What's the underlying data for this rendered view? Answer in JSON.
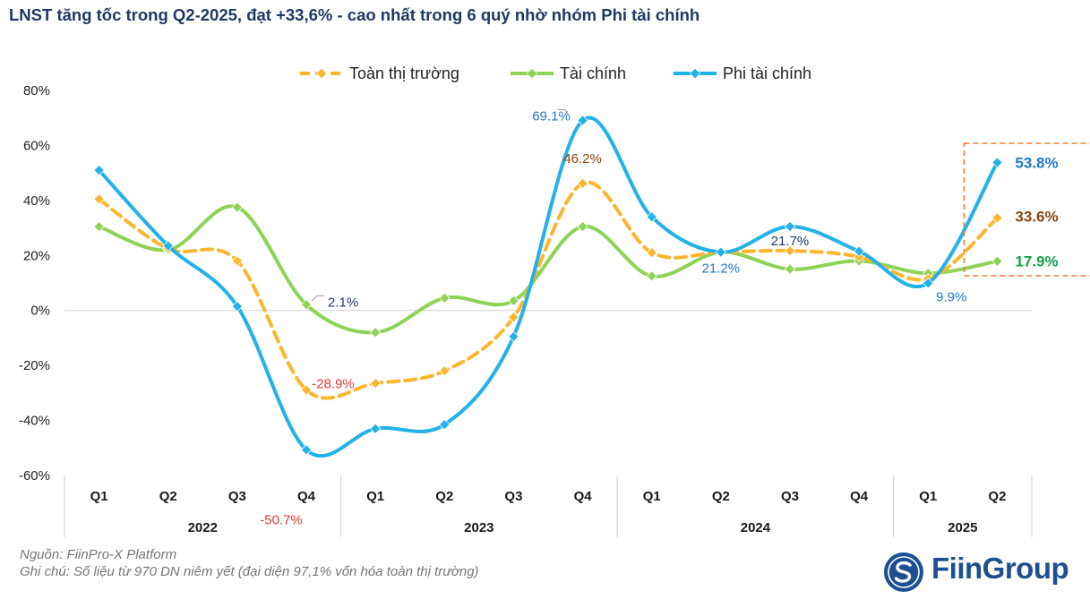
{
  "page": {
    "title": "LNST tăng tốc trong Q2-2025, đạt +33,6% - cao nhất trong 6 quý nhờ nhóm Phi tài chính",
    "source": "Nguồn: FiinPro-X Platform",
    "remark": "Ghi chú: Số liệu từ 970 DN niêm yết (đại diện 97,1% vốn hóa toàn thị trường)",
    "brand": "FiinGroup",
    "brand_icon": "fiingroup-s-logo"
  },
  "colors": {
    "market": "#fbb62d",
    "financial": "#8ed256",
    "nonfinancial": "#22b1e8",
    "highlight_box": "#ed7d31",
    "label_market": "#8b4513",
    "label_financial": "#13a34a",
    "label_nonfinancial": "#1f76c9",
    "label_negative": "#e53935",
    "label_neutral": "#203864"
  },
  "chart_data": {
    "type": "line",
    "y_unit": "%",
    "ylim": [
      -60,
      80
    ],
    "y_ticks": [
      "80%",
      "60%",
      "40%",
      "20%",
      "0%",
      "-20%",
      "-40%",
      "-60%"
    ],
    "categories": [
      "Q1",
      "Q2",
      "Q3",
      "Q4",
      "Q1",
      "Q2",
      "Q3",
      "Q4",
      "Q1",
      "Q2",
      "Q3",
      "Q4",
      "Q1",
      "Q2"
    ],
    "year_groups": [
      {
        "label": "2022",
        "span": 4
      },
      {
        "label": "2023",
        "span": 4
      },
      {
        "label": "2024",
        "span": 4
      },
      {
        "label": "2025",
        "span": 2
      }
    ],
    "legend_position": "top",
    "smooth_lines": true,
    "series": [
      {
        "key": "market",
        "name": "Toàn thị trường",
        "style": "dashed",
        "values": [
          40.5,
          22.5,
          18,
          -28.9,
          -26.5,
          -22,
          -2.5,
          46.2,
          21,
          21.2,
          21.7,
          19.5,
          11.5,
          33.6
        ]
      },
      {
        "key": "financial",
        "name": "Tài chính",
        "style": "solid",
        "values": [
          30.5,
          22,
          37.5,
          2.1,
          -8,
          4.5,
          3.5,
          30.5,
          12.5,
          21.2,
          15,
          18,
          13.5,
          17.9
        ]
      },
      {
        "key": "nonfinancial",
        "name": "Phi tài chính",
        "style": "solid",
        "values": [
          51,
          23.5,
          1.5,
          -50.7,
          -43,
          -41.5,
          -9.5,
          69.1,
          34,
          21.2,
          30.5,
          21.5,
          9.9,
          53.8
        ]
      }
    ],
    "data_labels": [
      {
        "text": "2.1%",
        "series": "financial",
        "index": 3,
        "color_key": "label_neutral"
      },
      {
        "text": "-28.9%",
        "series": "market",
        "index": 3,
        "color_key": "label_negative"
      },
      {
        "text": "-50.7%",
        "series": "nonfinancial",
        "index": 3,
        "color_key": "label_negative"
      },
      {
        "text": "69.1%",
        "series": "nonfinancial",
        "index": 7,
        "color_key": "label_nonfinancial"
      },
      {
        "text": "46.2%",
        "series": "market",
        "index": 7,
        "color_key": "label_market"
      },
      {
        "text": "21.2%",
        "series": "nonfinancial",
        "index": 9,
        "color_key": "label_nonfinancial"
      },
      {
        "text": "21.7%",
        "series": "market",
        "index": 10,
        "color_key": "label_neutral"
      },
      {
        "text": "9.9%",
        "series": "nonfinancial",
        "index": 12,
        "color_key": "label_nonfinancial"
      },
      {
        "text": "53.8%",
        "series": "nonfinancial",
        "index": 13,
        "color_key": "label_nonfinancial",
        "bold": true
      },
      {
        "text": "33.6%",
        "series": "market",
        "index": 13,
        "color_key": "label_market",
        "bold": true
      },
      {
        "text": "17.9%",
        "series": "financial",
        "index": 13,
        "color_key": "label_financial",
        "bold": true
      }
    ]
  }
}
